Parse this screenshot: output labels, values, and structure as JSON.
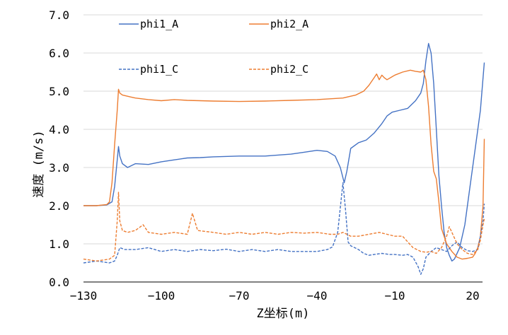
{
  "chart_data": {
    "type": "line",
    "xlabel": "Z坐标(m)",
    "ylabel": "速度 (m/s)",
    "xlim": [
      -130,
      25
    ],
    "ylim": [
      0,
      7
    ],
    "x_ticks": [
      -130,
      -100,
      -70,
      -40,
      -10,
      20
    ],
    "x_tick_labels": [
      "−130",
      "−100",
      "−70",
      "−40",
      "−10",
      "20"
    ],
    "y_ticks": [
      0,
      1,
      2,
      3,
      4,
      5,
      6,
      7
    ],
    "y_tick_labels": [
      "0.0",
      "1.0",
      "2.0",
      "3.0",
      "4.0",
      "5.0",
      "6.0",
      "7.0"
    ],
    "grid": "horizontal",
    "legend_position": "top",
    "series": [
      {
        "name": "phi1_A",
        "color": "#4472C4",
        "dash": "solid",
        "points": [
          [
            -130,
            2.0
          ],
          [
            -125,
            2.0
          ],
          [
            -121,
            2.02
          ],
          [
            -119,
            2.1
          ],
          [
            -118,
            2.5
          ],
          [
            -117,
            3.2
          ],
          [
            -116.5,
            3.55
          ],
          [
            -116,
            3.3
          ],
          [
            -115,
            3.1
          ],
          [
            -113,
            3.0
          ],
          [
            -110,
            3.1
          ],
          [
            -105,
            3.08
          ],
          [
            -100,
            3.15
          ],
          [
            -95,
            3.2
          ],
          [
            -90,
            3.25
          ],
          [
            -85,
            3.26
          ],
          [
            -80,
            3.28
          ],
          [
            -70,
            3.3
          ],
          [
            -60,
            3.3
          ],
          [
            -50,
            3.35
          ],
          [
            -45,
            3.4
          ],
          [
            -40,
            3.45
          ],
          [
            -36,
            3.42
          ],
          [
            -33,
            3.3
          ],
          [
            -31,
            3.0
          ],
          [
            -29.5,
            2.6
          ],
          [
            -28.5,
            2.9
          ],
          [
            -27,
            3.5
          ],
          [
            -24,
            3.65
          ],
          [
            -21,
            3.72
          ],
          [
            -18,
            3.9
          ],
          [
            -15,
            4.15
          ],
          [
            -13,
            4.35
          ],
          [
            -11,
            4.45
          ],
          [
            -8,
            4.5
          ],
          [
            -5,
            4.55
          ],
          [
            -2,
            4.75
          ],
          [
            0,
            4.95
          ],
          [
            1,
            5.2
          ],
          [
            2,
            5.8
          ],
          [
            3,
            6.25
          ],
          [
            4,
            6.0
          ],
          [
            5,
            5.2
          ],
          [
            6,
            4.0
          ],
          [
            7,
            2.8
          ],
          [
            8,
            2.0
          ],
          [
            9,
            1.3
          ],
          [
            10,
            0.9
          ],
          [
            11,
            0.7
          ],
          [
            12,
            0.55
          ],
          [
            13,
            0.6
          ],
          [
            15,
            0.9
          ],
          [
            17,
            1.5
          ],
          [
            19,
            2.5
          ],
          [
            21,
            3.5
          ],
          [
            23,
            4.5
          ],
          [
            24.5,
            5.75
          ]
        ]
      },
      {
        "name": "phi2_A",
        "color": "#ED7D31",
        "dash": "solid",
        "points": [
          [
            -130,
            2.0
          ],
          [
            -125,
            2.0
          ],
          [
            -121,
            2.03
          ],
          [
            -120,
            2.1
          ],
          [
            -119,
            2.6
          ],
          [
            -118,
            3.6
          ],
          [
            -117,
            4.5
          ],
          [
            -116.5,
            5.05
          ],
          [
            -116,
            4.95
          ],
          [
            -115,
            4.9
          ],
          [
            -112,
            4.85
          ],
          [
            -110,
            4.82
          ],
          [
            -105,
            4.78
          ],
          [
            -100,
            4.75
          ],
          [
            -95,
            4.78
          ],
          [
            -90,
            4.76
          ],
          [
            -80,
            4.74
          ],
          [
            -70,
            4.73
          ],
          [
            -60,
            4.74
          ],
          [
            -50,
            4.76
          ],
          [
            -40,
            4.78
          ],
          [
            -35,
            4.8
          ],
          [
            -30,
            4.82
          ],
          [
            -25,
            4.9
          ],
          [
            -22,
            5.0
          ],
          [
            -20,
            5.15
          ],
          [
            -18,
            5.35
          ],
          [
            -17,
            5.45
          ],
          [
            -16,
            5.3
          ],
          [
            -15,
            5.42
          ],
          [
            -14,
            5.35
          ],
          [
            -13,
            5.3
          ],
          [
            -11,
            5.38
          ],
          [
            -10,
            5.42
          ],
          [
            -7,
            5.5
          ],
          [
            -4,
            5.55
          ],
          [
            -2,
            5.52
          ],
          [
            0,
            5.5
          ],
          [
            1,
            5.55
          ],
          [
            2,
            5.3
          ],
          [
            3,
            4.6
          ],
          [
            4,
            3.6
          ],
          [
            5,
            2.9
          ],
          [
            6,
            2.7
          ],
          [
            7,
            2.1
          ],
          [
            8,
            1.4
          ],
          [
            10,
            1.0
          ],
          [
            12,
            0.8
          ],
          [
            14,
            0.65
          ],
          [
            16,
            0.6
          ],
          [
            18,
            0.62
          ],
          [
            20,
            0.65
          ],
          [
            21,
            0.75
          ],
          [
            22,
            0.9
          ],
          [
            23,
            1.2
          ],
          [
            24,
            2.0
          ],
          [
            24.5,
            3.75
          ]
        ]
      },
      {
        "name": "phi1_C",
        "color": "#4472C4",
        "dash": "dashed",
        "points": [
          [
            -130,
            0.5
          ],
          [
            -125,
            0.55
          ],
          [
            -120,
            0.5
          ],
          [
            -118,
            0.55
          ],
          [
            -117,
            0.7
          ],
          [
            -116,
            0.9
          ],
          [
            -114,
            0.85
          ],
          [
            -110,
            0.85
          ],
          [
            -105,
            0.9
          ],
          [
            -100,
            0.8
          ],
          [
            -95,
            0.85
          ],
          [
            -90,
            0.8
          ],
          [
            -85,
            0.85
          ],
          [
            -80,
            0.82
          ],
          [
            -75,
            0.86
          ],
          [
            -70,
            0.8
          ],
          [
            -65,
            0.85
          ],
          [
            -60,
            0.8
          ],
          [
            -55,
            0.85
          ],
          [
            -50,
            0.8
          ],
          [
            -45,
            0.8
          ],
          [
            -40,
            0.8
          ],
          [
            -36,
            0.85
          ],
          [
            -34,
            0.92
          ],
          [
            -32,
            1.3
          ],
          [
            -30,
            2.6
          ],
          [
            -29,
            1.9
          ],
          [
            -28,
            1.05
          ],
          [
            -27,
            0.95
          ],
          [
            -24,
            0.85
          ],
          [
            -22,
            0.75
          ],
          [
            -20,
            0.7
          ],
          [
            -18,
            0.72
          ],
          [
            -15,
            0.75
          ],
          [
            -12,
            0.72
          ],
          [
            -10,
            0.72
          ],
          [
            -7,
            0.7
          ],
          [
            -5,
            0.72
          ],
          [
            -3,
            0.65
          ],
          [
            -1,
            0.4
          ],
          [
            0,
            0.2
          ],
          [
            1,
            0.35
          ],
          [
            2,
            0.65
          ],
          [
            4,
            0.8
          ],
          [
            6,
            0.9
          ],
          [
            8,
            0.85
          ],
          [
            10,
            0.8
          ],
          [
            12,
            0.95
          ],
          [
            14,
            1.05
          ],
          [
            16,
            0.9
          ],
          [
            18,
            0.82
          ],
          [
            20,
            0.8
          ],
          [
            22,
            0.85
          ],
          [
            23,
            1.2
          ],
          [
            24,
            1.6
          ],
          [
            24.5,
            2.05
          ]
        ]
      },
      {
        "name": "phi2_C",
        "color": "#ED7D31",
        "dash": "dashed",
        "points": [
          [
            -130,
            0.6
          ],
          [
            -125,
            0.55
          ],
          [
            -120,
            0.6
          ],
          [
            -118,
            0.7
          ],
          [
            -117,
            1.6
          ],
          [
            -116.5,
            2.35
          ],
          [
            -116,
            1.6
          ],
          [
            -115,
            1.35
          ],
          [
            -113,
            1.3
          ],
          [
            -110,
            1.35
          ],
          [
            -107,
            1.5
          ],
          [
            -105,
            1.3
          ],
          [
            -100,
            1.25
          ],
          [
            -95,
            1.3
          ],
          [
            -90,
            1.25
          ],
          [
            -88,
            1.8
          ],
          [
            -86,
            1.35
          ],
          [
            -80,
            1.3
          ],
          [
            -75,
            1.25
          ],
          [
            -70,
            1.3
          ],
          [
            -65,
            1.25
          ],
          [
            -60,
            1.3
          ],
          [
            -55,
            1.25
          ],
          [
            -50,
            1.3
          ],
          [
            -45,
            1.28
          ],
          [
            -40,
            1.3
          ],
          [
            -35,
            1.25
          ],
          [
            -32,
            1.25
          ],
          [
            -30,
            1.3
          ],
          [
            -27,
            1.2
          ],
          [
            -24,
            1.2
          ],
          [
            -20,
            1.25
          ],
          [
            -16,
            1.3
          ],
          [
            -13,
            1.25
          ],
          [
            -10,
            1.2
          ],
          [
            -7,
            1.2
          ],
          [
            -5,
            1.05
          ],
          [
            -3,
            0.9
          ],
          [
            0,
            0.8
          ],
          [
            2,
            0.78
          ],
          [
            4,
            0.8
          ],
          [
            6,
            0.75
          ],
          [
            8,
            0.9
          ],
          [
            10,
            1.2
          ],
          [
            11,
            1.45
          ],
          [
            12,
            1.3
          ],
          [
            14,
            1.0
          ],
          [
            16,
            0.85
          ],
          [
            18,
            0.75
          ],
          [
            20,
            0.72
          ],
          [
            22,
            0.85
          ],
          [
            23,
            1.1
          ],
          [
            24,
            1.5
          ],
          [
            24.5,
            1.65
          ]
        ]
      }
    ]
  }
}
